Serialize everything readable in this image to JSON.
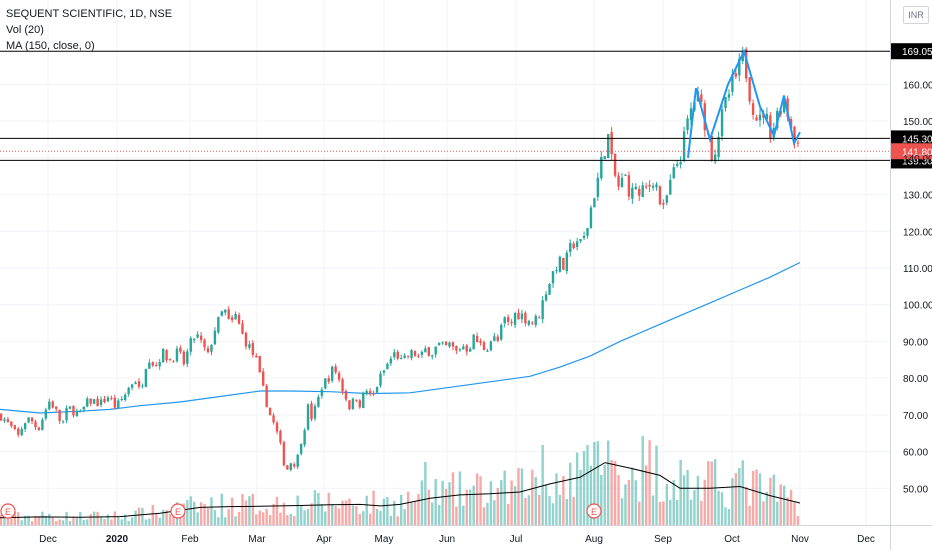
{
  "legend": {
    "symbol": "SEQUENT SCIENTIFIC, 1D, NSE",
    "vol": "Vol (20)",
    "ma": "MA (150, close, 0)"
  },
  "currency_badge": "INR",
  "colors": {
    "up": "#26a69a",
    "down": "#ef5350",
    "ma_line": "#2196f3",
    "pattern": "#2196f3",
    "level_line": "#000000",
    "price_line": "#ef5350"
  },
  "chart_data": {
    "type": "candlestick",
    "ylim": [
      40,
      183
    ],
    "y_ticks": [
      50,
      60,
      70,
      80,
      90,
      100,
      110,
      120,
      130,
      140,
      150,
      160
    ],
    "y_tick_labels": [
      "50.00",
      "60.00",
      "70.00",
      "80.00",
      "90.00",
      "100.00",
      "110.00",
      "120.00",
      "130.00",
      "140.00",
      "150.00",
      "160.00"
    ],
    "x_labels": [
      "Dec",
      "2020",
      "Feb",
      "Mar",
      "Apr",
      "May",
      "Jun",
      "Jul",
      "Aug",
      "Sep",
      "Oct",
      "Nov",
      "Dec"
    ],
    "horizontal_levels": [
      {
        "value": 169.05,
        "label": "169.05"
      },
      {
        "value": 145.3,
        "label": "145.30"
      },
      {
        "value": 139.3,
        "label": "139.30"
      }
    ],
    "last_price": {
      "value": 141.8,
      "label": "141.80"
    },
    "close_path": [
      [
        0,
        70
      ],
      [
        10,
        67
      ],
      [
        18,
        64
      ],
      [
        24,
        68
      ],
      [
        30,
        69
      ],
      [
        38,
        66
      ],
      [
        45,
        71
      ],
      [
        50,
        74
      ],
      [
        56,
        71
      ],
      [
        62,
        67
      ],
      [
        68,
        72
      ],
      [
        74,
        71
      ],
      [
        80,
        70
      ],
      [
        86,
        73
      ],
      [
        92,
        74
      ],
      [
        100,
        73
      ],
      [
        108,
        75
      ],
      [
        116,
        72
      ],
      [
        124,
        75
      ],
      [
        130,
        78
      ],
      [
        135,
        80
      ],
      [
        140,
        76
      ],
      [
        146,
        84
      ],
      [
        150,
        86
      ],
      [
        155,
        83
      ],
      [
        162,
        87
      ],
      [
        170,
        85
      ],
      [
        178,
        87
      ],
      [
        184,
        84
      ],
      [
        190,
        89
      ],
      [
        196,
        92
      ],
      [
        202,
        89
      ],
      [
        208,
        86
      ],
      [
        214,
        93
      ],
      [
        218,
        95
      ],
      [
        224,
        99
      ],
      [
        230,
        94
      ],
      [
        236,
        97
      ],
      [
        242,
        92
      ],
      [
        248,
        89
      ],
      [
        252,
        87
      ],
      [
        256,
        85
      ],
      [
        260,
        80
      ],
      [
        264,
        76
      ],
      [
        270,
        70
      ],
      [
        276,
        66
      ],
      [
        280,
        62
      ],
      [
        284,
        57
      ],
      [
        288,
        55
      ],
      [
        292,
        58
      ],
      [
        296,
        56
      ],
      [
        300,
        62
      ],
      [
        304,
        66
      ],
      [
        308,
        72
      ],
      [
        312,
        69
      ],
      [
        318,
        74
      ],
      [
        322,
        78
      ],
      [
        328,
        80
      ],
      [
        334,
        83
      ],
      [
        340,
        79
      ],
      [
        344,
        76
      ],
      [
        350,
        72
      ],
      [
        356,
        75
      ],
      [
        360,
        73
      ],
      [
        366,
        77
      ],
      [
        372,
        74
      ],
      [
        378,
        79
      ],
      [
        384,
        82
      ],
      [
        390,
        85
      ],
      [
        396,
        87
      ],
      [
        402,
        84
      ],
      [
        408,
        86
      ],
      [
        414,
        87
      ],
      [
        420,
        85
      ],
      [
        426,
        88
      ],
      [
        432,
        87
      ],
      [
        438,
        89
      ],
      [
        444,
        88
      ],
      [
        450,
        89
      ],
      [
        456,
        87
      ],
      [
        462,
        89
      ],
      [
        468,
        88
      ],
      [
        474,
        91
      ],
      [
        480,
        89
      ],
      [
        486,
        88
      ],
      [
        492,
        91
      ],
      [
        498,
        90
      ],
      [
        504,
        96
      ],
      [
        510,
        94
      ],
      [
        516,
        98
      ],
      [
        522,
        97
      ],
      [
        528,
        96
      ],
      [
        534,
        95
      ],
      [
        540,
        98
      ],
      [
        546,
        104
      ],
      [
        552,
        108
      ],
      [
        558,
        112
      ],
      [
        564,
        110
      ],
      [
        570,
        115
      ],
      [
        576,
        118
      ],
      [
        582,
        116
      ],
      [
        588,
        122
      ],
      [
        592,
        128
      ],
      [
        596,
        132
      ],
      [
        600,
        137
      ],
      [
        604,
        142
      ],
      [
        608,
        146
      ],
      [
        612,
        138
      ],
      [
        616,
        134
      ],
      [
        620,
        131
      ],
      [
        624,
        136
      ],
      [
        628,
        132
      ],
      [
        632,
        130
      ],
      [
        636,
        133
      ],
      [
        640,
        128
      ],
      [
        644,
        132
      ],
      [
        648,
        131
      ],
      [
        652,
        135
      ],
      [
        656,
        133
      ],
      [
        660,
        128
      ],
      [
        664,
        125
      ],
      [
        668,
        131
      ],
      [
        672,
        134
      ],
      [
        676,
        138
      ],
      [
        680,
        140
      ],
      [
        684,
        145
      ],
      [
        688,
        150
      ],
      [
        692,
        154
      ],
      [
        696,
        157
      ],
      [
        700,
        155
      ],
      [
        704,
        151
      ],
      [
        708,
        146
      ],
      [
        712,
        141
      ],
      [
        716,
        143
      ],
      [
        720,
        149
      ],
      [
        726,
        155
      ],
      [
        732,
        160
      ],
      [
        736,
        162
      ],
      [
        740,
        165
      ],
      [
        744,
        168
      ],
      [
        748,
        160
      ],
      [
        752,
        155
      ],
      [
        756,
        152
      ],
      [
        760,
        150
      ],
      [
        764,
        153
      ],
      [
        768,
        149
      ],
      [
        772,
        147
      ],
      [
        776,
        151
      ],
      [
        780,
        154
      ],
      [
        784,
        156
      ],
      [
        788,
        152
      ],
      [
        792,
        148
      ],
      [
        796,
        145
      ],
      [
        800,
        141.8
      ]
    ],
    "ma_150": [
      [
        0,
        71.5
      ],
      [
        40,
        70.5
      ],
      [
        80,
        71
      ],
      [
        110,
        71.5
      ],
      [
        140,
        72.5
      ],
      [
        180,
        73.5
      ],
      [
        220,
        75
      ],
      [
        260,
        76.5
      ],
      [
        290,
        76.5
      ],
      [
        330,
        76.3
      ],
      [
        370,
        75.8
      ],
      [
        410,
        76
      ],
      [
        450,
        77.5
      ],
      [
        490,
        79
      ],
      [
        530,
        80.5
      ],
      [
        560,
        83
      ],
      [
        590,
        86
      ],
      [
        620,
        90
      ],
      [
        650,
        93.5
      ],
      [
        680,
        97
      ],
      [
        710,
        100.5
      ],
      [
        740,
        104
      ],
      [
        770,
        107.5
      ],
      [
        800,
        111.5
      ]
    ],
    "volume_ma_20": [
      [
        0,
        42
      ],
      [
        40,
        42.2
      ],
      [
        80,
        42.1
      ],
      [
        120,
        42.3
      ],
      [
        160,
        43.2
      ],
      [
        200,
        44.8
      ],
      [
        230,
        45
      ],
      [
        260,
        45.1
      ],
      [
        300,
        45.3
      ],
      [
        330,
        45.5
      ],
      [
        360,
        45.6
      ],
      [
        380,
        45.2
      ],
      [
        400,
        45.6
      ],
      [
        430,
        47.3
      ],
      [
        460,
        48.2
      ],
      [
        490,
        48.5
      ],
      [
        520,
        49
      ],
      [
        550,
        51.2
      ],
      [
        580,
        53
      ],
      [
        605,
        57
      ],
      [
        630,
        55.5
      ],
      [
        660,
        53.5
      ],
      [
        680,
        50
      ],
      [
        710,
        50
      ],
      [
        740,
        50.5
      ],
      [
        770,
        48
      ],
      [
        800,
        46
      ]
    ],
    "pattern_zigzag": [
      [
        688,
        140
      ],
      [
        696,
        159
      ],
      [
        710,
        145
      ],
      [
        728,
        160
      ],
      [
        744,
        169
      ],
      [
        760,
        154
      ],
      [
        774,
        146
      ],
      [
        784,
        157
      ],
      [
        794,
        144
      ],
      [
        800,
        147
      ]
    ]
  }
}
